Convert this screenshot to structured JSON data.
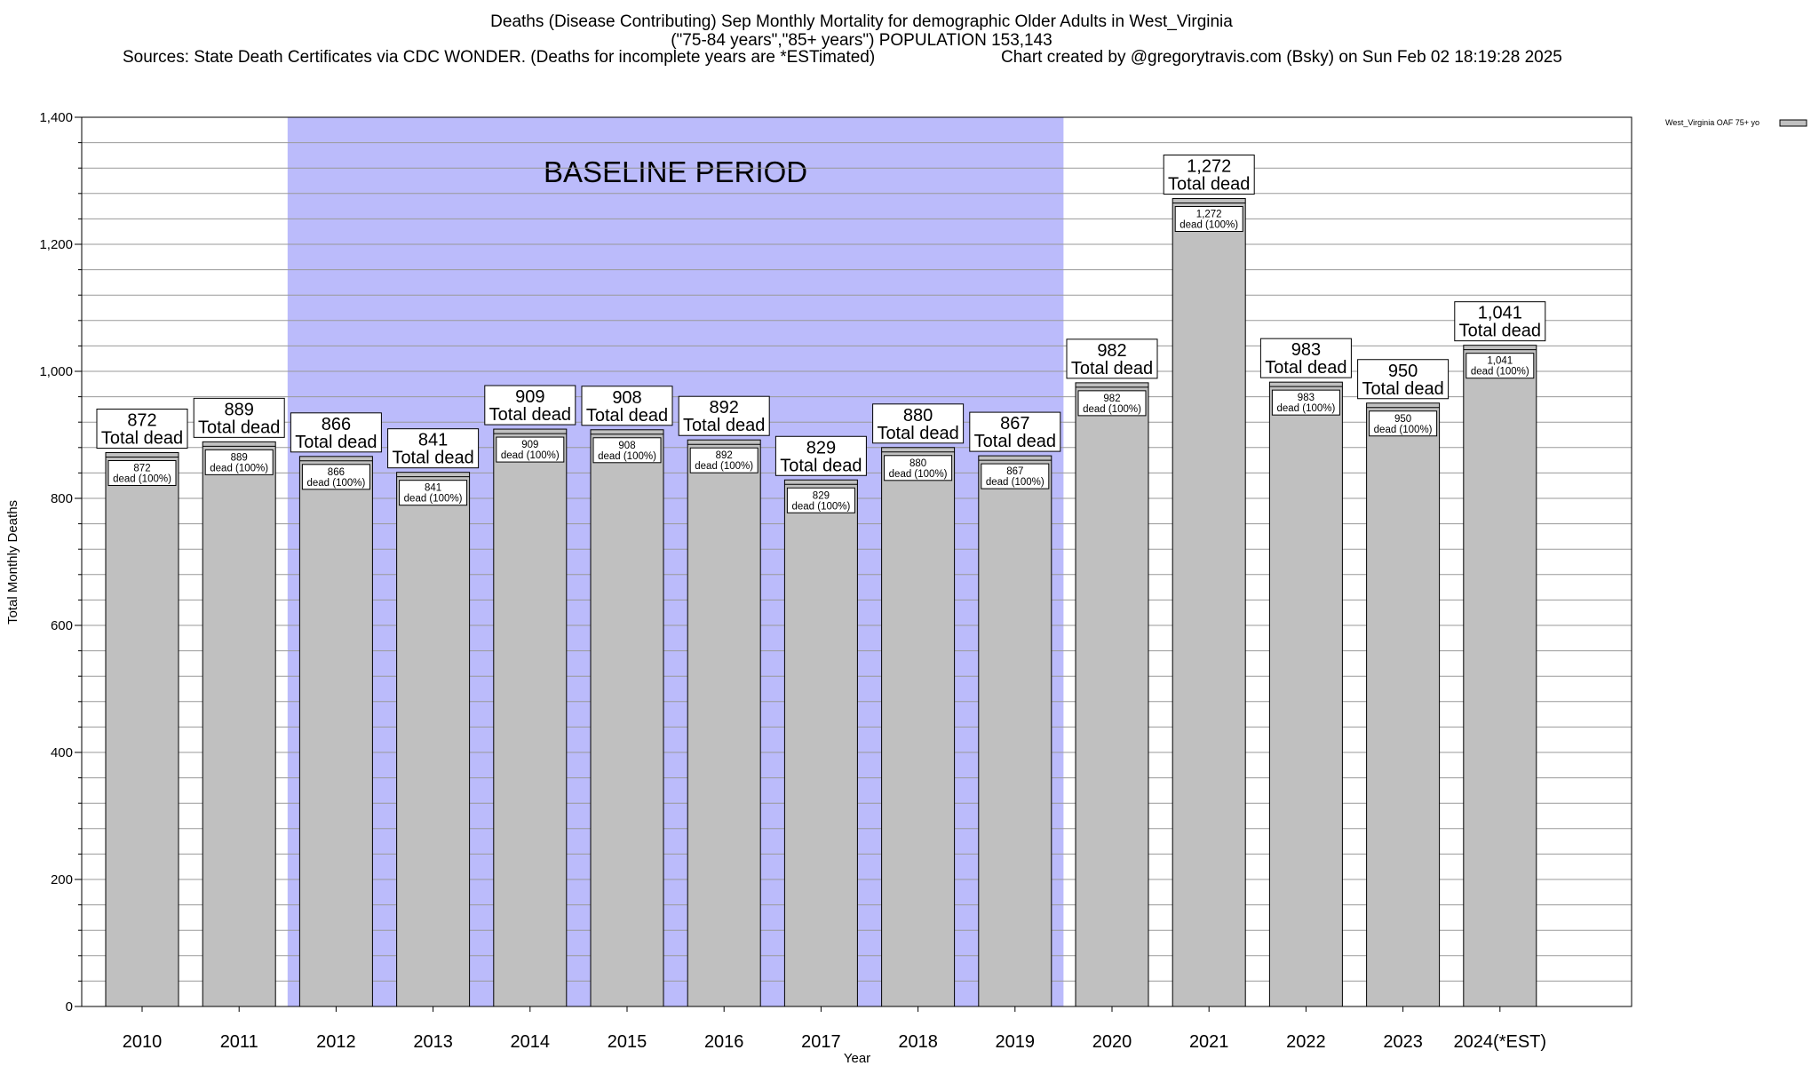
{
  "header": {
    "title_line1": "Deaths (Disease Contributing) Sep Monthly Mortality for demographic Older Adults in West_Virginia",
    "title_line2": "(\"75-84 years\",\"85+ years\") POPULATION 153,143",
    "sources": "Sources: State Death Certificates via CDC WONDER. (Deaths for incomplete years are *ESTimated)",
    "credit": "Chart created by @gregorytravis.com (Bsky) on Sun Feb 02 18:19:28 2025"
  },
  "chart_data": {
    "type": "bar",
    "title": "Deaths (Disease Contributing) Sep Monthly Mortality for demographic Older Adults in West_Virginia",
    "xlabel": "Year",
    "ylabel": "Total Monthly Deaths",
    "ylim": [
      0,
      1400
    ],
    "yticks": [
      0,
      200,
      400,
      600,
      800,
      1000,
      1200,
      1400
    ],
    "ytick_labels": [
      "0",
      "200",
      "400",
      "600",
      "800",
      "1,000",
      "1,200",
      "1,400"
    ],
    "grid": "horizontal",
    "categories": [
      "2010",
      "2011",
      "2012",
      "2013",
      "2014",
      "2015",
      "2016",
      "2017",
      "2018",
      "2019",
      "2020",
      "2021",
      "2022",
      "2023",
      "2024(*EST)"
    ],
    "values": [
      872,
      889,
      866,
      841,
      909,
      908,
      892,
      829,
      880,
      867,
      982,
      1272,
      983,
      950,
      1041
    ],
    "value_labels": [
      "872",
      "889",
      "866",
      "841",
      "909",
      "908",
      "892",
      "829",
      "880",
      "867",
      "982",
      "1,272",
      "983",
      "950",
      "1,041"
    ],
    "total_label": "Total dead",
    "inner_label": "dead (100%)",
    "baseline": {
      "label": "BASELINE PERIOD",
      "start": "2012",
      "end": "2019",
      "color": "#bbbbfb"
    },
    "bar_color": "#c0c0c0",
    "legend": {
      "label": "West_Virginia OAF 75+ yo",
      "placement": "top-right"
    }
  }
}
